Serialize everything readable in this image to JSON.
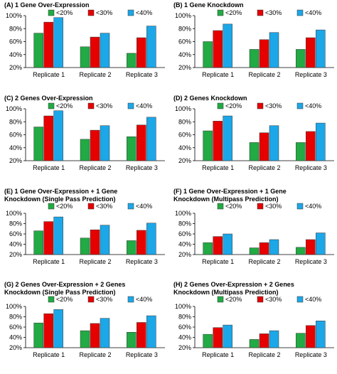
{
  "chart_data": [
    {
      "type": "bar",
      "title_lines": [
        "(A) 1 Gene Over-Expression"
      ],
      "categories": [
        "Replicate 1",
        "Replicate 2",
        "Replicate 3"
      ],
      "yticks": [
        "20%",
        "40%",
        "60%",
        "80%",
        "100%"
      ],
      "ylim": [
        20,
        100
      ],
      "legend_position": "top-right",
      "series": [
        {
          "name": "<20%",
          "color": "#22aa44",
          "values": [
            73,
            52,
            42
          ]
        },
        {
          "name": "<30%",
          "color": "#e60000",
          "values": [
            90,
            67,
            66
          ]
        },
        {
          "name": "<40%",
          "color": "#1ca7e8",
          "values": [
            97,
            73,
            84
          ]
        }
      ]
    },
    {
      "type": "bar",
      "title_lines": [
        "(B) 1 Gene Knockdown"
      ],
      "categories": [
        "Replicate 1",
        "Replicate 2",
        "Replicate 3"
      ],
      "yticks": [
        "20%",
        "40%",
        "60%",
        "80%",
        "100%"
      ],
      "ylim": [
        20,
        100
      ],
      "legend_position": "top-right",
      "series": [
        {
          "name": "<20%",
          "color": "#22aa44",
          "values": [
            60,
            48,
            48
          ]
        },
        {
          "name": "<30%",
          "color": "#e60000",
          "values": [
            77,
            63,
            66
          ]
        },
        {
          "name": "<40%",
          "color": "#1ca7e8",
          "values": [
            87,
            74,
            78
          ]
        }
      ]
    },
    {
      "type": "bar",
      "title_lines": [
        "(C) 2 Genes Over-Expression"
      ],
      "categories": [
        "Replicate 1",
        "Replicate 2",
        "Replicate 3"
      ],
      "yticks": [
        "20%",
        "40%",
        "60%",
        "80%",
        "100%"
      ],
      "ylim": [
        20,
        100
      ],
      "legend_position": "top-right",
      "series": [
        {
          "name": "<20%",
          "color": "#22aa44",
          "values": [
            72,
            53,
            57
          ]
        },
        {
          "name": "<30%",
          "color": "#e60000",
          "values": [
            89,
            67,
            75
          ]
        },
        {
          "name": "<40%",
          "color": "#1ca7e8",
          "values": [
            97,
            74,
            87
          ]
        }
      ]
    },
    {
      "type": "bar",
      "title_lines": [
        "(D) 2 Genes Knockdown"
      ],
      "categories": [
        "Replicate 1",
        "Replicate 2",
        "Replicate 3"
      ],
      "yticks": [
        "20%",
        "40%",
        "60%",
        "80%",
        "100%"
      ],
      "ylim": [
        20,
        100
      ],
      "legend_position": "top-right",
      "series": [
        {
          "name": "<20%",
          "color": "#22aa44",
          "values": [
            66,
            48,
            48
          ]
        },
        {
          "name": "<30%",
          "color": "#e60000",
          "values": [
            81,
            63,
            65
          ]
        },
        {
          "name": "<40%",
          "color": "#1ca7e8",
          "values": [
            89,
            74,
            78
          ]
        }
      ]
    },
    {
      "type": "bar",
      "title_lines": [
        "(E) 1 Gene Over-Expression + 1 Gene",
        "Knockdown (Single Pass Prediction)"
      ],
      "categories": [
        "Replicate 1",
        "Replicate 2",
        "Replicate 3"
      ],
      "yticks": [
        "20%",
        "40%",
        "60%",
        "80%",
        "100%"
      ],
      "ylim": [
        20,
        100
      ],
      "legend_position": "top-right",
      "series": [
        {
          "name": "<20%",
          "color": "#22aa44",
          "values": [
            66,
            52,
            47
          ]
        },
        {
          "name": "<30%",
          "color": "#e60000",
          "values": [
            84,
            68,
            67
          ]
        },
        {
          "name": "<40%",
          "color": "#1ca7e8",
          "values": [
            93,
            77,
            81
          ]
        }
      ]
    },
    {
      "type": "bar",
      "title_lines": [
        "(F) 1 Gene Over-Expression + 1 Gene",
        "Knockdown (Multipass Prediction)"
      ],
      "categories": [
        "Replicate 1",
        "Replicate 2",
        "Replicate 3"
      ],
      "yticks": [
        "20%",
        "40%",
        "60%",
        "80%",
        "100%"
      ],
      "ylim": [
        20,
        100
      ],
      "legend_position": "top-right",
      "series": [
        {
          "name": "<20%",
          "color": "#22aa44",
          "values": [
            43,
            33,
            34
          ]
        },
        {
          "name": "<30%",
          "color": "#e60000",
          "values": [
            55,
            43,
            49
          ]
        },
        {
          "name": "<40%",
          "color": "#1ca7e8",
          "values": [
            60,
            49,
            62
          ]
        }
      ]
    },
    {
      "type": "bar",
      "title_lines": [
        "(G) 2 Genes Over-Expression + 2 Genes",
        "Knockdown (Single Pass Prediction)"
      ],
      "categories": [
        "Replicate 1",
        "Replicate 2",
        "Replicate 3"
      ],
      "yticks": [
        "20%",
        "40%",
        "60%",
        "80%",
        "100%"
      ],
      "ylim": [
        20,
        100
      ],
      "legend_position": "top-right",
      "series": [
        {
          "name": "<20%",
          "color": "#22aa44",
          "values": [
            68,
            53,
            50
          ]
        },
        {
          "name": "<30%",
          "color": "#e60000",
          "values": [
            86,
            67,
            69
          ]
        },
        {
          "name": "<40%",
          "color": "#1ca7e8",
          "values": [
            94,
            77,
            82
          ]
        }
      ]
    },
    {
      "type": "bar",
      "title_lines": [
        "(H) 2 Genes Over-Expression + 2 Genes",
        "Knockdown (Multipass Prediction)"
      ],
      "categories": [
        "Replicate 1",
        "Replicate 2",
        "Replicate 3"
      ],
      "yticks": [
        "20%",
        "40%",
        "60%",
        "80%",
        "100%"
      ],
      "ylim": [
        20,
        100
      ],
      "legend_position": "top-right",
      "series": [
        {
          "name": "<20%",
          "color": "#22aa44",
          "values": [
            46,
            36,
            48
          ]
        },
        {
          "name": "<30%",
          "color": "#e60000",
          "values": [
            59,
            47,
            63
          ]
        },
        {
          "name": "<40%",
          "color": "#1ca7e8",
          "values": [
            64,
            53,
            72
          ]
        }
      ]
    }
  ]
}
